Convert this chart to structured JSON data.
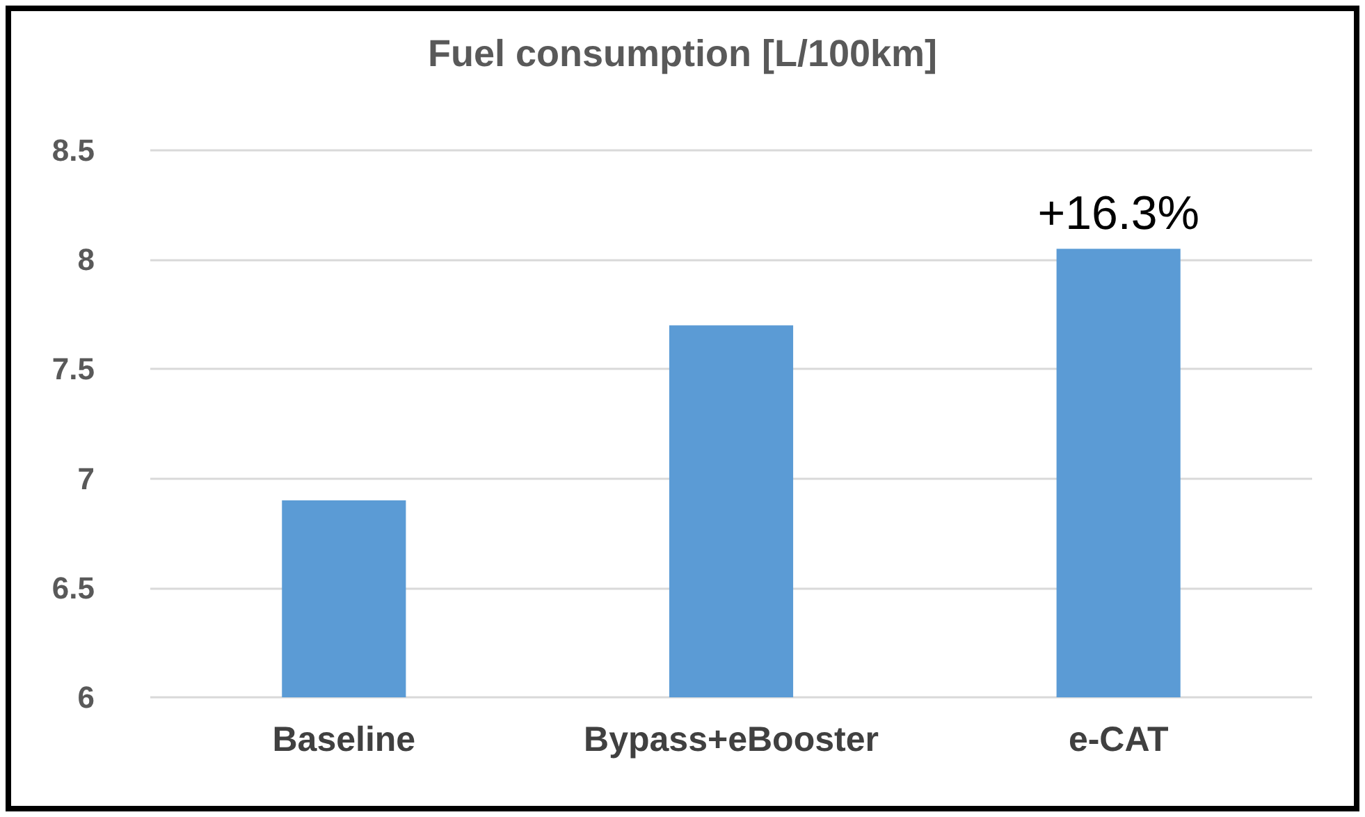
{
  "chart_data": {
    "type": "bar",
    "title": "Fuel consumption [L/100km]",
    "categories": [
      "Baseline",
      "Bypass+eBooster",
      "e-CAT"
    ],
    "values": [
      6.9,
      7.7,
      8.05
    ],
    "color": "#5b9bd5",
    "ylim": [
      6,
      8.5
    ],
    "yticks": [
      6,
      6.5,
      7,
      7.5,
      8,
      8.5
    ],
    "grid": "y",
    "annotations": [
      {
        "text": "+16.3%",
        "x": "e-CAT",
        "y": 8.05
      }
    ]
  }
}
